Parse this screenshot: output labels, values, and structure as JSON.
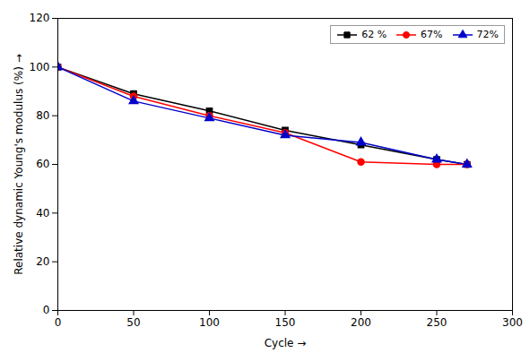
{
  "chart_data": {
    "type": "line",
    "title": "",
    "xlabel": "Cycle",
    "ylabel": "Relative dynamic Young's modulus (%)",
    "xlim": [
      0,
      300
    ],
    "ylim": [
      0,
      120
    ],
    "xticks": [
      0,
      50,
      100,
      150,
      200,
      250,
      300
    ],
    "yticks": [
      0,
      20,
      40,
      60,
      80,
      100,
      120
    ],
    "x": [
      0,
      50,
      100,
      150,
      200,
      250,
      270
    ],
    "series": [
      {
        "name": "62 %",
        "color": "#000000",
        "marker": "square",
        "line_style": "solid",
        "values": [
          100,
          89,
          82,
          74,
          68,
          62,
          60
        ]
      },
      {
        "name": "67%",
        "color": "#ff0000",
        "marker": "circle",
        "line_style": "solid",
        "values": [
          100,
          88,
          80,
          73,
          61,
          60,
          60
        ]
      },
      {
        "name": "72%",
        "color": "#0000cc",
        "marker": "triangle",
        "line_style": "solid",
        "values": [
          100,
          86,
          79,
          72,
          69,
          62,
          60
        ]
      }
    ],
    "legend": "upper right",
    "grid": false
  }
}
